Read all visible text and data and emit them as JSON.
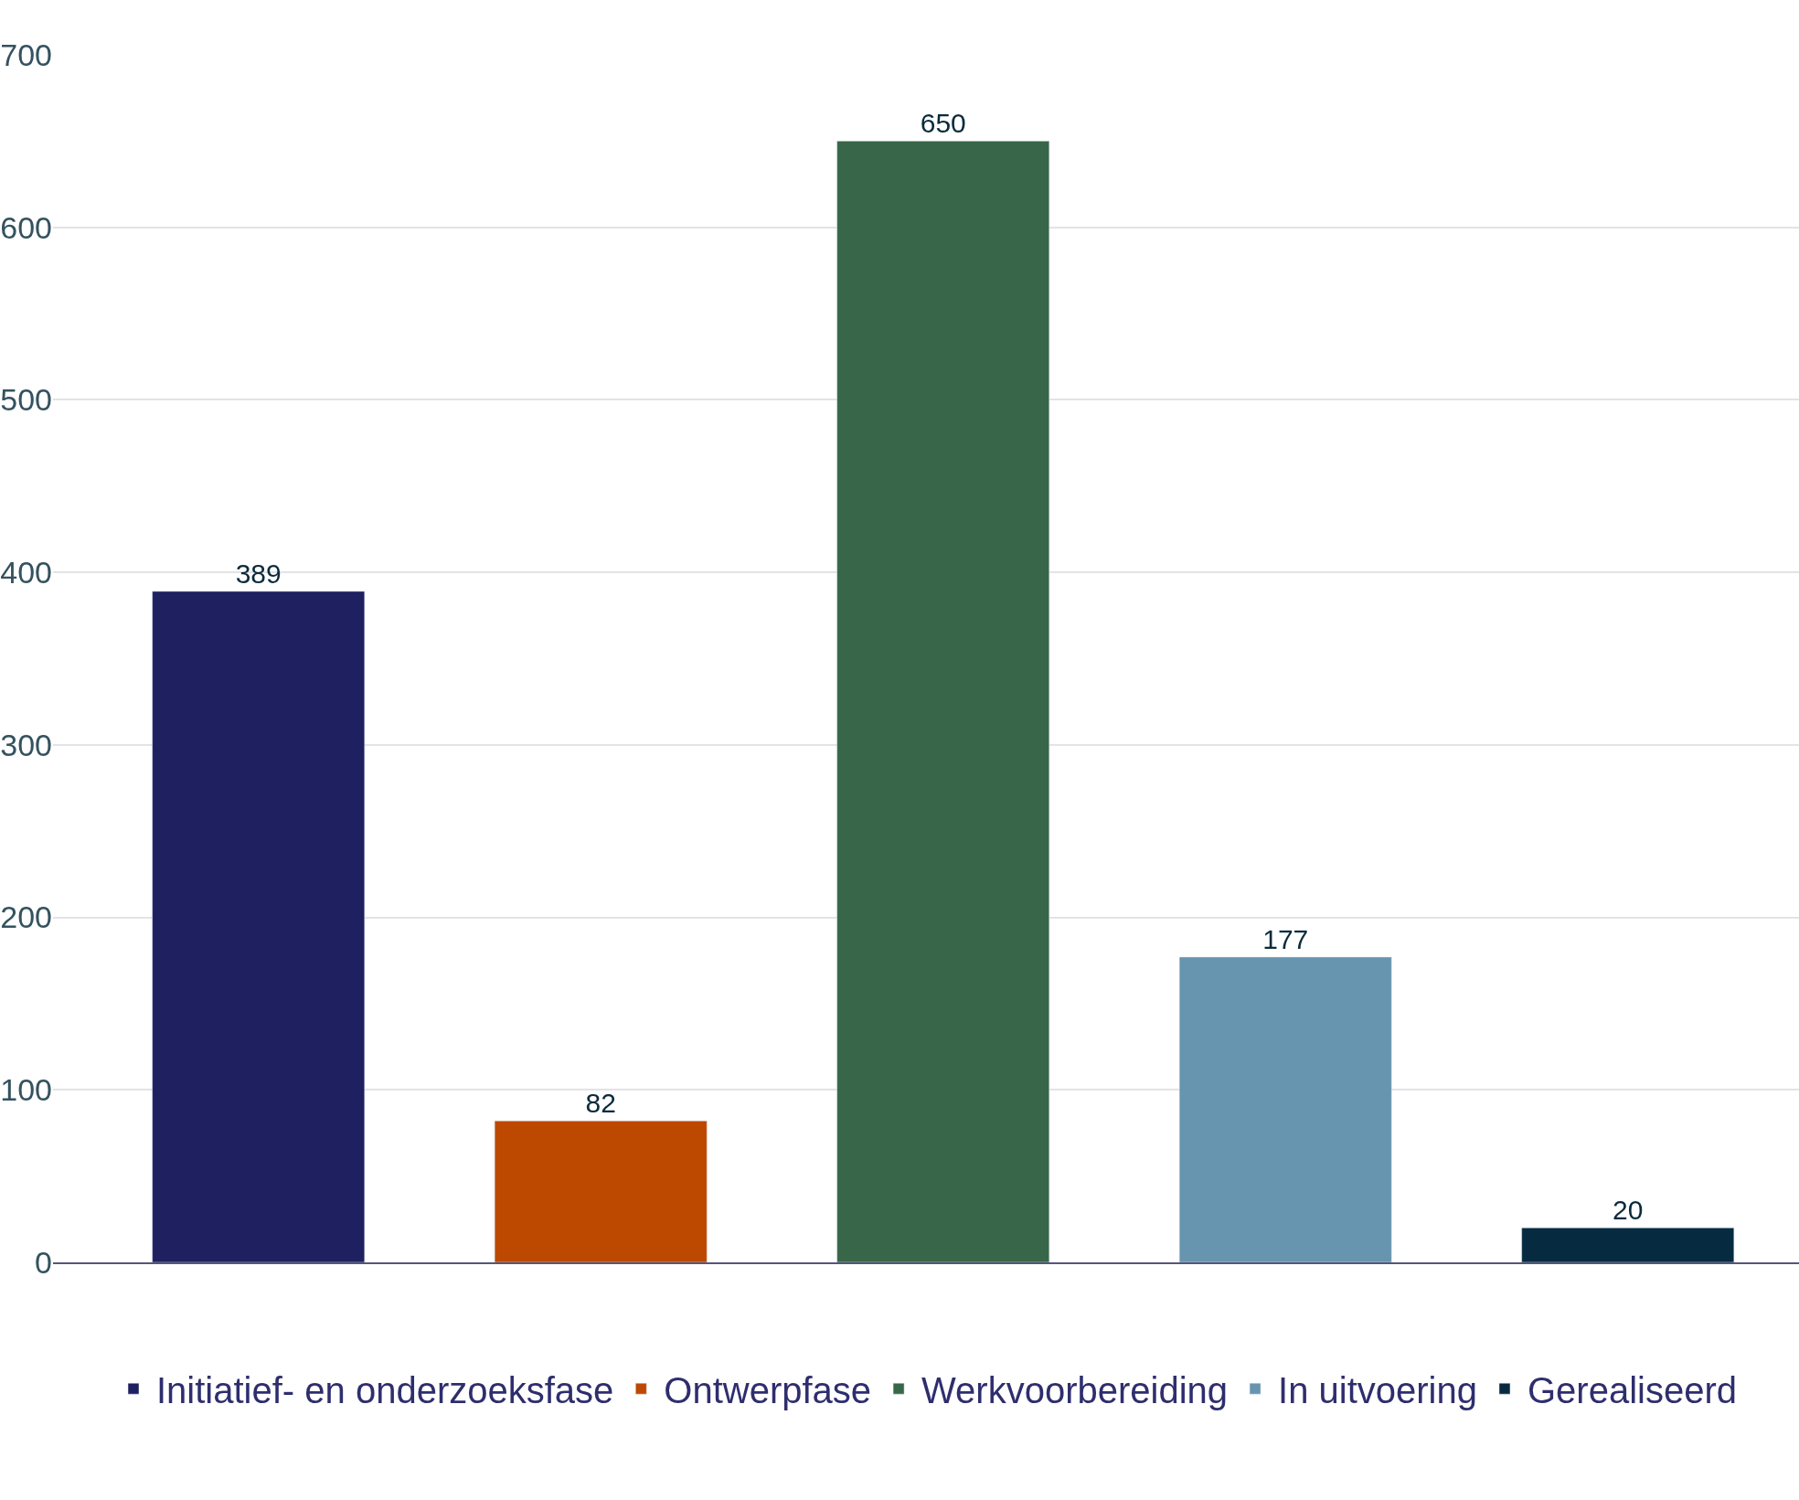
{
  "chart_data": {
    "type": "bar",
    "categories": [
      null,
      null,
      null,
      null,
      null
    ],
    "series": [
      {
        "name": "Initiatief- en onderzoeksfase",
        "color": "#1e2060",
        "values": [
          389,
          null,
          null,
          null,
          null
        ]
      },
      {
        "name": "Ontwerpfase",
        "color": "#bd4800",
        "values": [
          null,
          82,
          null,
          null,
          null
        ]
      },
      {
        "name": "Werkvoorbereiding",
        "color": "#386648",
        "values": [
          null,
          null,
          650,
          null,
          null
        ]
      },
      {
        "name": "In uitvoering",
        "color": "#6794ae",
        "values": [
          null,
          null,
          null,
          177,
          null
        ]
      },
      {
        "name": "Gerealiseerd",
        "color": "#062b40",
        "values": [
          null,
          null,
          null,
          null,
          20
        ]
      }
    ],
    "ylim": [
      0,
      700
    ],
    "yticks": [
      0,
      100,
      200,
      300,
      400,
      500,
      600,
      700
    ],
    "grid": "y",
    "legend": "bottom",
    "data_labels": true
  }
}
